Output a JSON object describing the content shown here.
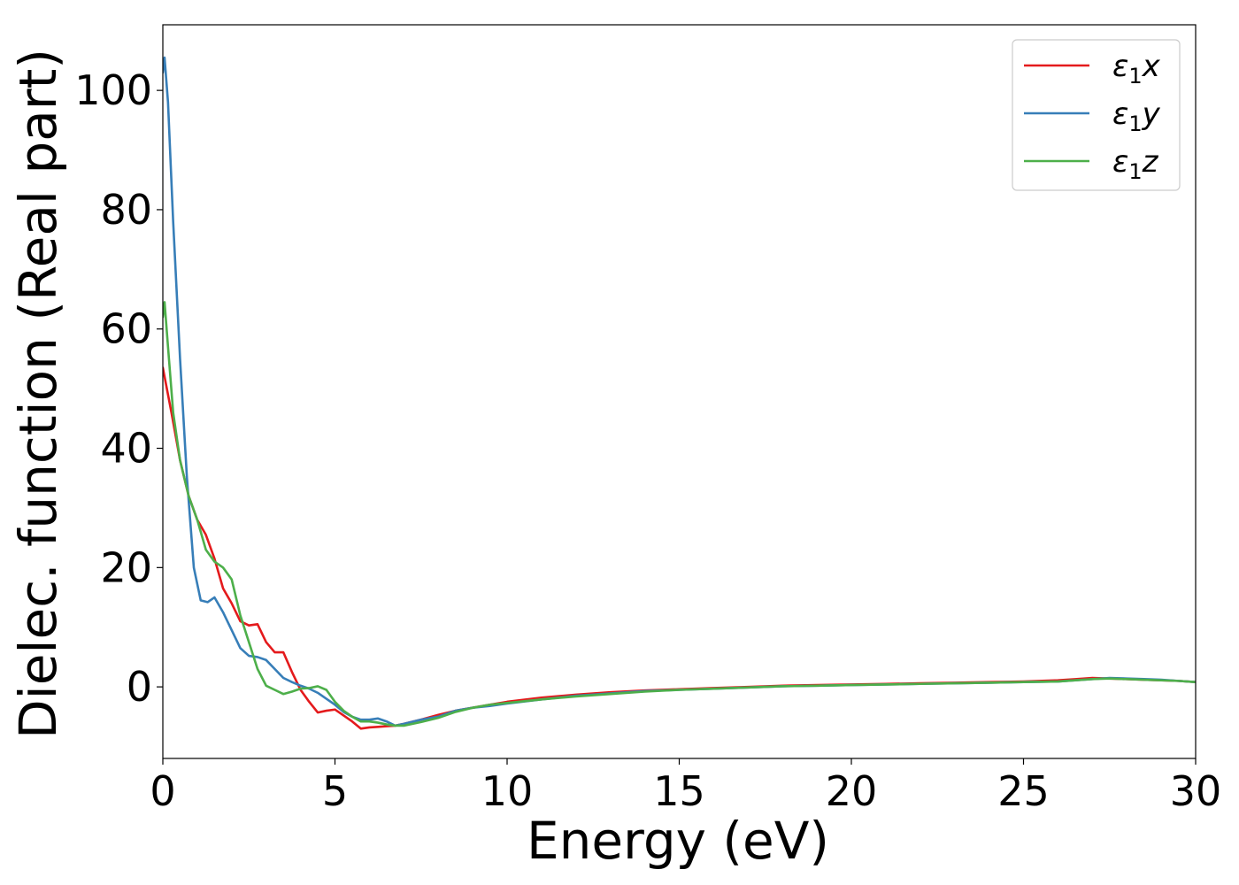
{
  "chart_data": {
    "type": "line",
    "title": "",
    "xlabel": "Energy (eV)",
    "ylabel": "Dielec. function (Real part)",
    "xlim": [
      0,
      30
    ],
    "ylim": [
      -12,
      111
    ],
    "x_ticks": [
      0,
      5,
      10,
      15,
      20,
      25,
      30
    ],
    "y_ticks": [
      0,
      20,
      40,
      60,
      80,
      100
    ],
    "grid": false,
    "legend_position": "top-right",
    "series": [
      {
        "name": "ε1x",
        "legend": {
          "symbol": "ε",
          "sub": "1",
          "axis": "x"
        },
        "color": "#e41a1c",
        "x": [
          0,
          0.25,
          0.5,
          0.75,
          1.0,
          1.25,
          1.5,
          1.75,
          2.0,
          2.25,
          2.5,
          2.75,
          3.0,
          3.25,
          3.5,
          3.75,
          4.0,
          4.25,
          4.5,
          4.75,
          5.0,
          5.25,
          5.5,
          5.75,
          6.0,
          6.25,
          6.5,
          6.75,
          7.0,
          7.5,
          8.0,
          8.5,
          9.0,
          9.5,
          10,
          11,
          12,
          13,
          14,
          15,
          16,
          17,
          18,
          19,
          20,
          21,
          22,
          23,
          24,
          25,
          26,
          26.5,
          27,
          27.5,
          28,
          28.5,
          29,
          29.5,
          30
        ],
        "values": [
          53.5,
          46,
          38,
          32,
          28,
          25.5,
          21.5,
          16.5,
          14,
          11,
          10.3,
          10.5,
          7.5,
          5.8,
          5.8,
          2.5,
          -0.5,
          -2.5,
          -4.3,
          -4.0,
          -3.8,
          -4.8,
          -5.8,
          -7.0,
          -6.8,
          -6.7,
          -6.6,
          -6.5,
          -6.2,
          -5.5,
          -4.7,
          -4.0,
          -3.5,
          -3.0,
          -2.5,
          -1.8,
          -1.3,
          -0.9,
          -0.6,
          -0.4,
          -0.2,
          0.0,
          0.2,
          0.3,
          0.4,
          0.5,
          0.6,
          0.7,
          0.8,
          0.9,
          1.1,
          1.3,
          1.5,
          1.4,
          1.3,
          1.2,
          1.1,
          1.0,
          0.8
        ]
      },
      {
        "name": "ε1y",
        "legend": {
          "symbol": "ε",
          "sub": "1",
          "axis": "y"
        },
        "color": "#377eb8",
        "x": [
          0,
          0.05,
          0.15,
          0.3,
          0.5,
          0.7,
          0.9,
          1.1,
          1.3,
          1.5,
          1.75,
          2.0,
          2.25,
          2.5,
          2.75,
          3.0,
          3.25,
          3.5,
          3.75,
          4.0,
          4.25,
          4.5,
          4.75,
          5.0,
          5.25,
          5.5,
          5.75,
          6.0,
          6.25,
          6.5,
          6.75,
          7.0,
          7.5,
          8.0,
          8.5,
          9.0,
          9.5,
          10,
          11,
          12,
          13,
          14,
          15,
          16,
          17,
          18,
          19,
          20,
          21,
          22,
          23,
          24,
          25,
          26,
          26.5,
          27,
          27.5,
          28,
          28.5,
          29,
          29.5,
          30
        ],
        "values": [
          103,
          105.5,
          98,
          78,
          55,
          35,
          20,
          14.5,
          14.2,
          15,
          12.5,
          9.5,
          6.5,
          5.2,
          5.0,
          4.5,
          3.0,
          1.5,
          0.8,
          0.2,
          -0.3,
          -1.0,
          -2.0,
          -3.0,
          -4.2,
          -5.0,
          -5.5,
          -5.5,
          -5.3,
          -5.8,
          -6.5,
          -6.2,
          -5.5,
          -5.0,
          -4.0,
          -3.5,
          -3.2,
          -2.8,
          -2.1,
          -1.5,
          -1.1,
          -0.7,
          -0.5,
          -0.3,
          -0.1,
          0.1,
          0.2,
          0.3,
          0.4,
          0.5,
          0.6,
          0.7,
          0.8,
          0.9,
          1.1,
          1.3,
          1.5,
          1.4,
          1.3,
          1.2,
          1.0,
          0.8
        ]
      },
      {
        "name": "ε1z",
        "legend": {
          "symbol": "ε",
          "sub": "1",
          "axis": "z"
        },
        "color": "#4daf4a",
        "x": [
          0,
          0.05,
          0.15,
          0.3,
          0.5,
          0.75,
          1.0,
          1.25,
          1.5,
          1.75,
          2.0,
          2.25,
          2.5,
          2.75,
          3.0,
          3.25,
          3.5,
          3.75,
          4.0,
          4.25,
          4.5,
          4.75,
          5.0,
          5.25,
          5.5,
          5.75,
          6.0,
          6.25,
          6.5,
          6.75,
          7.0,
          7.5,
          8.0,
          8.5,
          9.0,
          9.5,
          10,
          11,
          12,
          13,
          14,
          15,
          16,
          17,
          18,
          19,
          20,
          21,
          22,
          23,
          24,
          25,
          26,
          26.5,
          27,
          27.5,
          28,
          28.5,
          29,
          29.5,
          30
        ],
        "values": [
          62,
          64.5,
          57,
          46,
          38,
          32,
          28,
          23,
          21,
          20,
          18,
          12,
          7.5,
          3.0,
          0.2,
          -0.5,
          -1.2,
          -0.8,
          -0.3,
          -0.2,
          0.1,
          -0.5,
          -2.5,
          -4.0,
          -5.0,
          -5.8,
          -5.8,
          -6.0,
          -6.3,
          -6.5,
          -6.5,
          -5.9,
          -5.2,
          -4.2,
          -3.5,
          -3.0,
          -2.7,
          -2.1,
          -1.6,
          -1.2,
          -0.8,
          -0.5,
          -0.3,
          -0.1,
          0.1,
          0.2,
          0.3,
          0.4,
          0.5,
          0.6,
          0.7,
          0.8,
          0.9,
          1.1,
          1.3,
          1.4,
          1.3,
          1.2,
          1.1,
          1.0,
          0.8
        ]
      }
    ]
  }
}
